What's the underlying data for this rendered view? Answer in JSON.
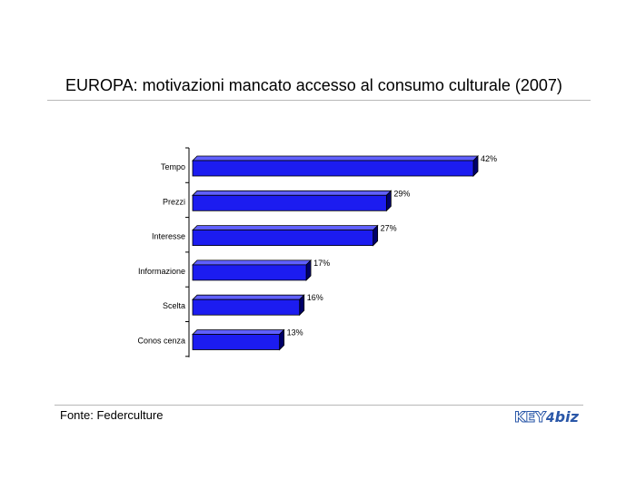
{
  "title": "EUROPA: motivazioni mancato accesso al consumo culturale (2007)",
  "source": "Fonte: Federculture",
  "logo": {
    "part1": "KEY",
    "part2": "4",
    "part3": "biz"
  },
  "colors": {
    "bar_front": "#1c1cf0",
    "bar_top": "#6060ff",
    "bar_side": "#00006a"
  },
  "chart_data": {
    "type": "bar",
    "orientation": "horizontal",
    "categories": [
      "Tempo",
      "Prezzi",
      "Interesse",
      "Informazione",
      "Scelta",
      "Conoscenza"
    ],
    "category_labels": [
      "Tempo",
      "Prezzi",
      "Interesse",
      "Informazione",
      "Scelta",
      "Conos cenza"
    ],
    "values": [
      42,
      29,
      27,
      17,
      16,
      13
    ],
    "value_labels": [
      "42%",
      "29%",
      "27%",
      "17%",
      "16%",
      "13%"
    ],
    "xlim": [
      0,
      42
    ],
    "grid": false,
    "legend": "none"
  }
}
